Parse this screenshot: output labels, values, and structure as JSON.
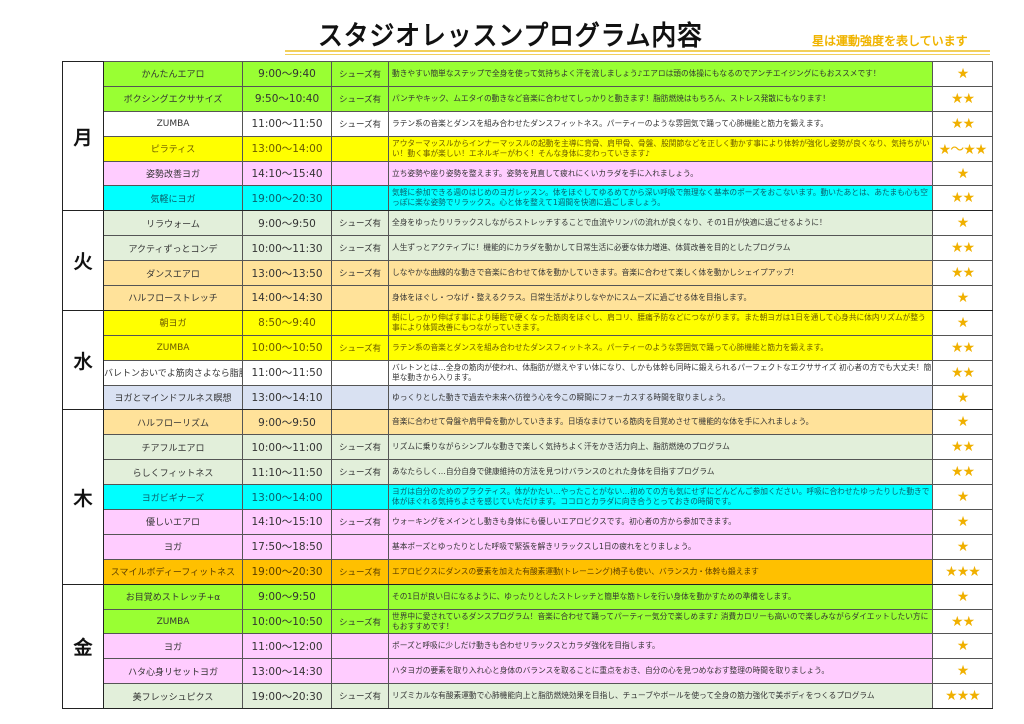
{
  "title": "スタジオレッスンプログラム内容",
  "note": "星は運動強度を表しています",
  "colors": {
    "lime": "#99ff33",
    "white": "#ffffff",
    "yellow": "#ffff00",
    "pink": "#ffccff",
    "cyan": "#00ffff",
    "lightgreen": "#e2efda",
    "lightorange": "#ffe29a",
    "lightblue": "#d9e1f2",
    "orange": "#ffc000",
    "star": "#f0b000"
  },
  "days": [
    {
      "day": "月",
      "lessons": [
        {
          "name": "かんたんエアロ",
          "time": "9:00～9:40",
          "shoes": "シューズ有",
          "desc": "動きやすい簡単なステップで全身を使って気持ちよく汗を流しましょう♪エアロは頭の体操にもなるのでアンチエイジングにもおススメです！",
          "stars": "★",
          "color": "lime"
        },
        {
          "name": "ボクシングエクササイズ",
          "time": "9:50～10:40",
          "shoes": "シューズ有",
          "desc": "パンチやキック、ムエタイの動きなど音楽に合わせてしっかりと動きます！脂肪燃焼はもちろん、ストレス発散にもなります！",
          "stars": "★★",
          "color": "lime"
        },
        {
          "name": "ZUMBA",
          "time": "11:00～11:50",
          "shoes": "シューズ有",
          "desc": "ラテン系の音楽とダンスを組み合わせたダンスフィットネス。パーティーのような雰囲気で踊って心肺機能と筋力を鍛えます。",
          "stars": "★★",
          "color": "white"
        },
        {
          "name": "ピラティス",
          "time": "13:00～14:00",
          "shoes": "",
          "desc": "アウターマッスルからインナーマッスルの起動を主導に背骨、肩甲骨、骨盤、股関節などを正しく動かす事により体幹が強化し姿勢が良くなり、気持ちがいい！動く事が楽しい！エネルギーがわく！そんな身体に変わっていきます♪",
          "stars": "★～★★",
          "color": "yellow"
        },
        {
          "name": "姿勢改善ヨガ",
          "time": "14:10～15:40",
          "shoes": "",
          "desc": "立ち姿勢や座り姿勢を整えます。姿勢を見直して疲れにくいカラダを手に入れましょう。",
          "stars": "★",
          "color": "pink"
        },
        {
          "name": "気軽にヨガ",
          "time": "19:00～20:30",
          "shoes": "",
          "desc": "気軽に参加できる週のはじめのヨガレッスン。体をほぐしてゆるめてから深い呼吸で無理なく基本のポーズをおこないます。動いたあとは、あたまも心も空っぽに楽な姿勢でリラックス。心と体を整えて1週間を快適に過ごしましょう。",
          "stars": "★★",
          "color": "cyan"
        }
      ]
    },
    {
      "day": "火",
      "lessons": [
        {
          "name": "リラウォーム",
          "time": "9:00～9:50",
          "shoes": "シューズ有",
          "desc": "全身をゆったりリラックスしながらストレッチすることで血流やリンパの流れが良くなり、その1日が快適に過ごせるように！",
          "stars": "★",
          "color": "lightgreen"
        },
        {
          "name": "アクティずっとコンデ",
          "time": "10:00～11:30",
          "shoes": "シューズ有",
          "desc": "人生ずっとアクティブに！機能的にカラダを動かして日常生活に必要な体力増進、体質改善を目的としたプログラム",
          "stars": "★★",
          "color": "lightgreen"
        },
        {
          "name": "ダンスエアロ",
          "time": "13:00～13:50",
          "shoes": "シューズ有",
          "desc": "しなやかな曲線的な動きで音楽に合わせて体を動かしていきます。音楽に合わせて楽しく体を動かしシェイプアップ！",
          "stars": "★★",
          "color": "lightorange"
        },
        {
          "name": "ハルフローストレッチ",
          "time": "14:00～14:30",
          "shoes": "",
          "desc": "身体をほぐし・つなげ・整えるクラス。日常生活がよりしなやかにスムーズに過ごせる体を目指します。",
          "stars": "★",
          "color": "lightorange"
        }
      ]
    },
    {
      "day": "水",
      "lessons": [
        {
          "name": "朝ヨガ",
          "time": "8:50～9:40",
          "shoes": "",
          "desc": "朝にしっかり伸ばす事により睡眠で硬くなった筋肉をほぐし、肩コリ、腰痛予防などにつながります。また朝ヨガは1日を通して心身共に体内リズムが整う事により体質改善にもつながっていきます。",
          "stars": "★",
          "color": "yellow"
        },
        {
          "name": "ZUMBA",
          "time": "10:00～10:50",
          "shoes": "シューズ有",
          "desc": "ラテン系の音楽とダンスを組み合わせたダンスフィットネス。パーティーのような雰囲気で踊って心肺機能と筋力を鍛えます。",
          "stars": "★★",
          "color": "yellow"
        },
        {
          "name": "バレトンおいでよ筋肉さよなら脂肪",
          "time": "11:00～11:50",
          "shoes": "",
          "desc": "バレトンとは…全身の筋肉が使われ、体脂肪が燃えやすい体になり、しかも体幹も同時に鍛えられるパーフェクトなエクササイズ 初心者の方でも大丈夫！簡単な動きから入ります。",
          "stars": "★★",
          "color": "white"
        },
        {
          "name": "ヨガとマインドフルネス瞑想",
          "time": "13:00～14:10",
          "shoes": "",
          "desc": "ゆっくりとした動きで過去や未来へ彷徨う心を今この瞬間にフォーカスする時間を取りましょう。",
          "stars": "★",
          "color": "lightblue"
        }
      ]
    },
    {
      "day": "木",
      "lessons": [
        {
          "name": "ハルフローリズム",
          "time": "9:00～9:50",
          "shoes": "",
          "desc": "音楽に合わせて骨盤や肩甲骨を動かしていきます。日頃なまけている筋肉を目覚めさせて機能的な体を手に入れましょう。",
          "stars": "★",
          "color": "lightorange"
        },
        {
          "name": "チアフルエアロ",
          "time": "10:00～11:00",
          "shoes": "シューズ有",
          "desc": "リズムに乗りながらシンプルな動きで楽しく気持ちよく汗をかき活力向上、脂肪燃焼のプログラム",
          "stars": "★★",
          "color": "lightgreen"
        },
        {
          "name": "らしくフィットネス",
          "time": "11:10～11:50",
          "shoes": "シューズ有",
          "desc": "あなたらしく…自分自身で健康維持の方法を見つけバランスのとれた身体を目指すプログラム",
          "stars": "★★",
          "color": "lightgreen"
        },
        {
          "name": "ヨガビギナーズ",
          "time": "13:00～14:00",
          "shoes": "",
          "desc": "ヨガは自分のためのプラクティス。体がかたい…やったことがない…初めての方も気にせずにどんどんご参加ください。呼吸に合わせたゆったりした動きで体がほぐれる気持ちよさを感じていただけます。ココロとカラダに向き合うとっておきの時間です。",
          "stars": "★",
          "color": "cyan"
        },
        {
          "name": "優しいエアロ",
          "time": "14:10～15:10",
          "shoes": "シューズ有",
          "desc": "ウォーキングをメインとし動きも身体にも優しいエアロビクスです。初心者の方から参加できます。",
          "stars": "★",
          "color": "pink"
        },
        {
          "name": "ヨガ",
          "time": "17:50～18:50",
          "shoes": "",
          "desc": "基本ポーズとゆったりとした呼吸で緊張を解きリラックスし1日の疲れをとりましょう。",
          "stars": "★",
          "color": "pink"
        },
        {
          "name": "スマイルボディーフィットネス",
          "time": "19:00～20:30",
          "shoes": "シューズ有",
          "desc": "エアロビクスにダンスの要素を加えた有酸素運動(トレーニング)椅子も使い、バランス力・体幹も鍛えます",
          "stars": "★★★",
          "color": "orange"
        }
      ]
    },
    {
      "day": "金",
      "lessons": [
        {
          "name": "お目覚めストレッチ+α",
          "time": "9:00～9:50",
          "shoes": "",
          "desc": "その1日が良い日になるように、ゆったりとしたストレッチと簡単な筋トレを行い身体を動かすための準備をします。",
          "stars": "★",
          "color": "lime"
        },
        {
          "name": "ZUMBA",
          "time": "10:00～10:50",
          "shoes": "シューズ有",
          "desc": "世界中に愛されているダンスプログラム！音楽に合わせて踊ってパーティー気分で楽しめます♪ 消費カロリーも高いので楽しみながらダイエットしたい方にもおすすめです！",
          "stars": "★★",
          "color": "lime"
        },
        {
          "name": "ヨガ",
          "time": "11:00～12:00",
          "shoes": "",
          "desc": "ポーズと呼吸に少しだけ動きも合わせリラックスとカラダ強化を目指します。",
          "stars": "★",
          "color": "pink"
        },
        {
          "name": "ハタ心身リセットヨガ",
          "time": "13:00～14:30",
          "shoes": "",
          "desc": "ハタヨガの要素を取り入れ心と身体のバランスを取ることに重点をおき、自分の心を見つめなおす整理の時間を取りましょう。",
          "stars": "★",
          "color": "pink"
        },
        {
          "name": "美フレッシュピクス",
          "time": "19:00～20:30",
          "shoes": "シューズ有",
          "desc": "リズミカルな有酸素運動で心肺機能向上と脂肪燃焼効果を目指し、チューブやボールを使って全身の筋力強化で美ボディをつくるプログラム",
          "stars": "★★★",
          "color": "lightgreen"
        }
      ]
    }
  ]
}
